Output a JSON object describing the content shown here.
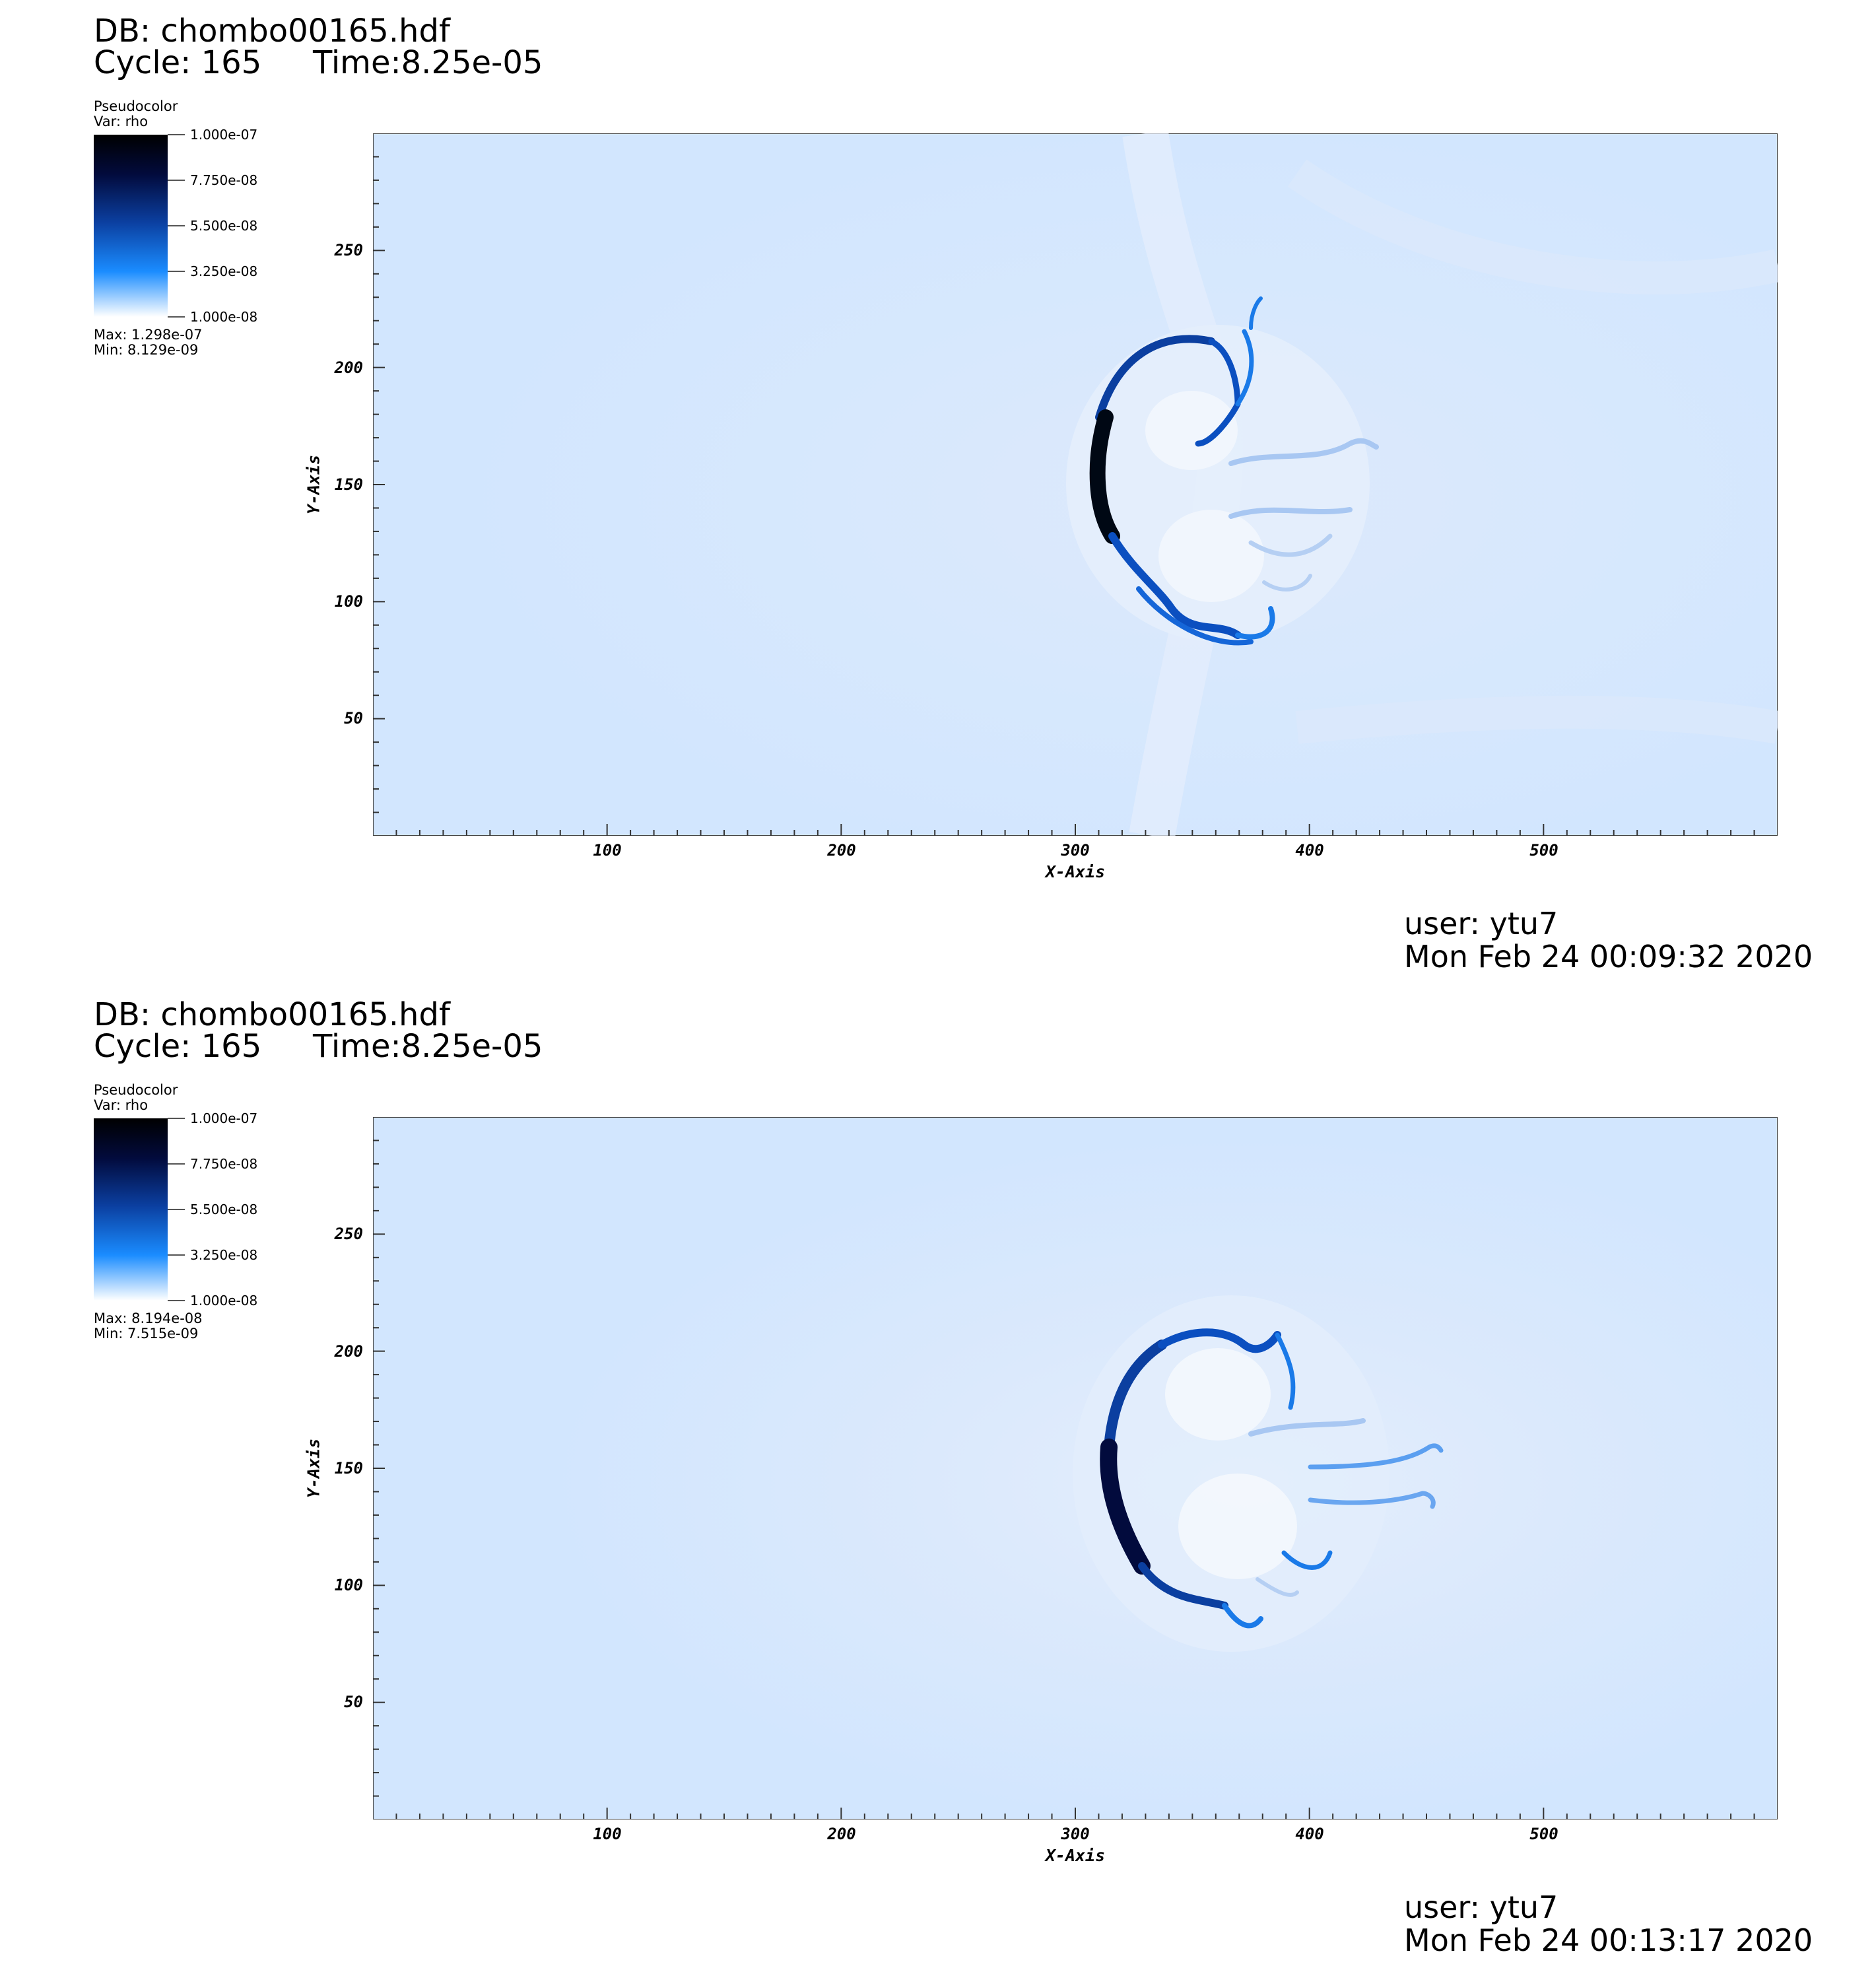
{
  "panels": [
    {
      "db": "DB: chombo00165.hdf",
      "cycle": "Cycle: 165",
      "time": "Time:8.25e-05",
      "legend": {
        "plot_type": "Pseudocolor",
        "var": "Var: rho",
        "ticks": [
          "1.000e-07",
          "7.750e-08",
          "5.500e-08",
          "3.250e-08",
          "1.000e-08"
        ],
        "max": "Max:  1.298e-07",
        "min": "Min:  8.129e-09"
      },
      "user": "user: ytu7",
      "date": "Mon Feb 24 00:09:32 2020"
    },
    {
      "db": "DB: chombo00165.hdf",
      "cycle": "Cycle: 165",
      "time": "Time:8.25e-05",
      "legend": {
        "plot_type": "Pseudocolor",
        "var": "Var: rho",
        "ticks": [
          "1.000e-07",
          "7.750e-08",
          "5.500e-08",
          "3.250e-08",
          "1.000e-08"
        ],
        "max": "Max:  8.194e-08",
        "min": "Min:  7.515e-09"
      },
      "user": "user: ytu7",
      "date": "Mon Feb 24 00:13:17 2020"
    }
  ],
  "chart_data": [
    {
      "type": "heatmap",
      "variable": "rho",
      "xlabel": "X-Axis",
      "ylabel": "Y-Axis",
      "xlim": [
        0,
        600
      ],
      "ylim": [
        0,
        300
      ],
      "xticks": [
        100,
        200,
        300,
        400,
        500
      ],
      "yticks": [
        50,
        100,
        150,
        200,
        250
      ],
      "colorbar_range": [
        1e-08,
        1e-07
      ],
      "data_max": 1.298e-07,
      "data_min": 8.129e-09
    },
    {
      "type": "heatmap",
      "variable": "rho",
      "xlabel": "X-Axis",
      "ylabel": "Y-Axis",
      "xlim": [
        0,
        600
      ],
      "ylim": [
        0,
        300
      ],
      "xticks": [
        100,
        200,
        300,
        400,
        500
      ],
      "yticks": [
        50,
        100,
        150,
        200,
        250
      ],
      "colorbar_range": [
        1e-08,
        1e-07
      ],
      "data_max": 8.194e-08,
      "data_min": 7.515e-09
    }
  ]
}
